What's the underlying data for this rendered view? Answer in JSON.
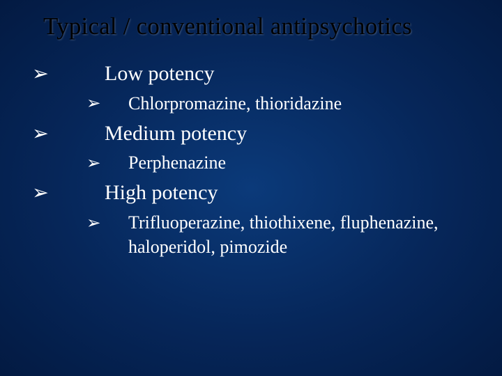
{
  "title": "Typical / conventional antipsychotics",
  "bullet_glyph": "➢",
  "colors": {
    "background_center": "#0b3a7a",
    "background_mid": "#062659",
    "background_edge": "#031a42",
    "title_color": "#000000",
    "text_color": "#ffffff"
  },
  "typography": {
    "title_fontsize": 35,
    "level1_fontsize": 30,
    "level2_fontsize": 26,
    "font_family": "Garamond / Times serif"
  },
  "items": [
    {
      "label": "Low potency",
      "sub": [
        {
          "label": "Chlorpromazine, thioridazine"
        }
      ]
    },
    {
      "label": "Medium potency",
      "sub": [
        {
          "label": "Perphenazine"
        }
      ]
    },
    {
      "label": "High potency",
      "sub": [
        {
          "label": "Trifluoperazine, thiothixene, fluphenazine, haloperidol, pimozide"
        }
      ]
    }
  ]
}
